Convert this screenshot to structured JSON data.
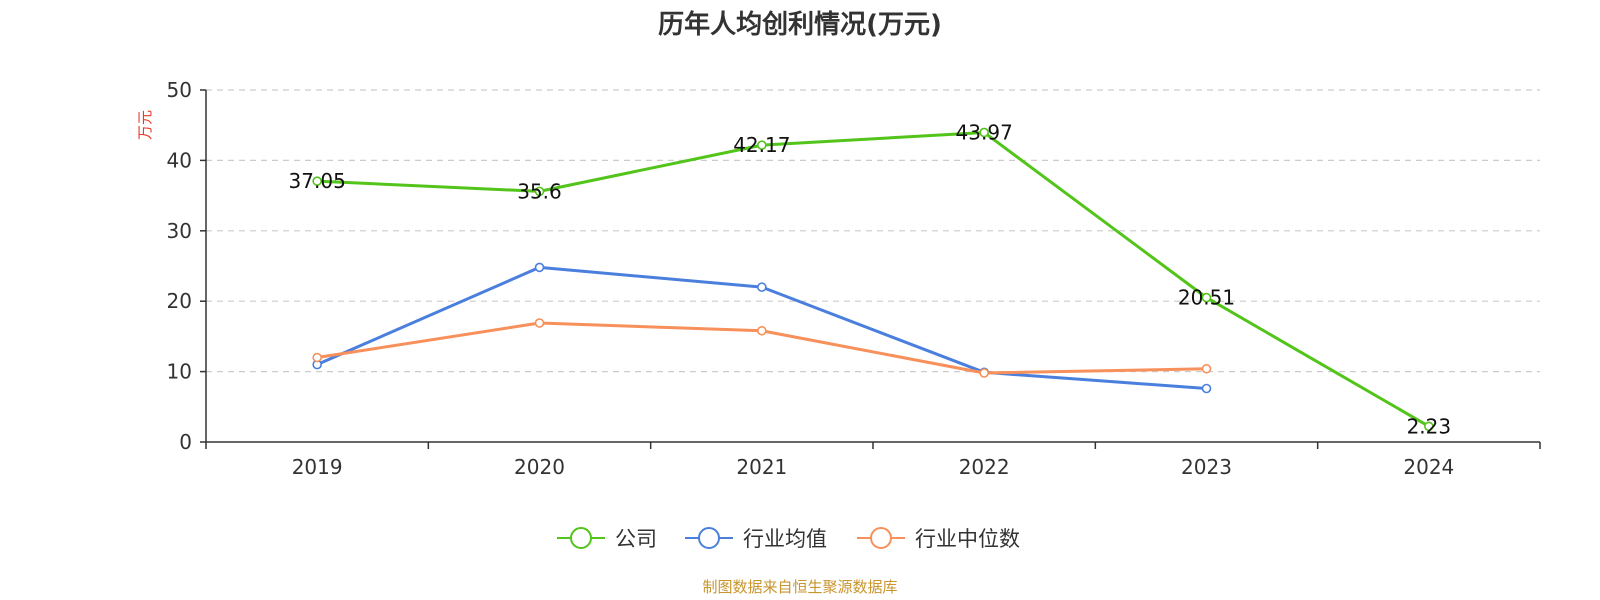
{
  "chart_data": {
    "type": "line",
    "title": "历年人均创利情况(万元)",
    "ylabel": "万元",
    "xlabel": "",
    "categories": [
      "2019",
      "2020",
      "2021",
      "2022",
      "2023",
      "2024"
    ],
    "ylim": [
      0,
      50
    ],
    "yticks": [
      0,
      10,
      20,
      30,
      40,
      50
    ],
    "grid": true,
    "legend_position": "bottom",
    "series": [
      {
        "name": "公司",
        "color": "#52c41a",
        "values": [
          37.05,
          35.6,
          42.17,
          43.97,
          20.51,
          2.23
        ],
        "labels": [
          "37.05",
          "35.6",
          "42.17",
          "43.97",
          "20.51",
          "2.23"
        ]
      },
      {
        "name": "行业均值",
        "color": "#4a7fde",
        "values": [
          11.0,
          24.8,
          22.0,
          9.9,
          7.6,
          null
        ]
      },
      {
        "name": "行业中位数",
        "color": "#f7905a",
        "values": [
          12.0,
          16.9,
          15.8,
          9.8,
          10.4,
          null
        ]
      }
    ],
    "source": "制图数据来自恒生聚源数据库"
  },
  "colors": {
    "ylabel": "#e8392c",
    "source": "#c9952d",
    "axis": "#333333",
    "grid": "#cccccc"
  }
}
